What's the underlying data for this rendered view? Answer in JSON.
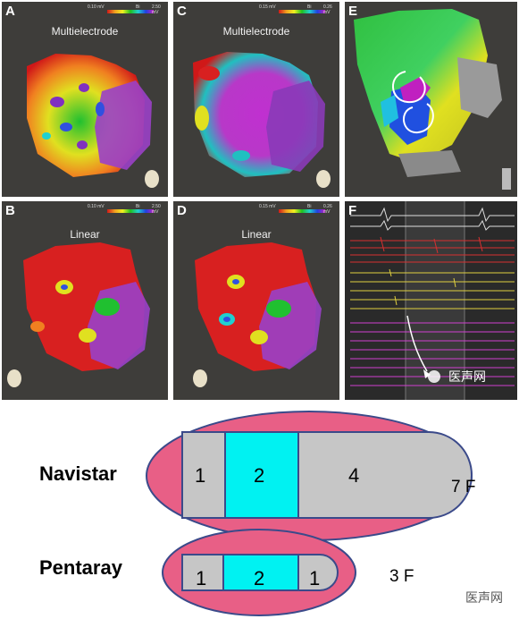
{
  "panels": {
    "A": {
      "letter": "A",
      "title": "Multielectrode",
      "scale_min": "0.10 mV",
      "scale_mid": "Bi",
      "scale_max": "2.50 mV"
    },
    "B": {
      "letter": "B",
      "title": "Linear",
      "scale_min": "0.10 mV",
      "scale_mid": "Bi",
      "scale_max": "2.50 mV"
    },
    "C": {
      "letter": "C",
      "title": "Multielectrode",
      "scale_min": "0.15 mV",
      "scale_mid": "Bi",
      "scale_max": "0.26 mV"
    },
    "D": {
      "letter": "D",
      "title": "Linear",
      "scale_min": "0.15 mV",
      "scale_mid": "Bi",
      "scale_max": "0.26 mV"
    },
    "E": {
      "letter": "E"
    },
    "F": {
      "letter": "F",
      "watermark": "医声网"
    }
  },
  "catheters": [
    {
      "name": "Navistar",
      "size": "7 F",
      "electrodes": [
        "1",
        "2",
        "4"
      ]
    },
    {
      "name": "Pentaray",
      "size": "3 F",
      "electrodes": [
        "1",
        "2",
        "1"
      ]
    }
  ],
  "watermark": "医声网",
  "colors": {
    "sheath_pink": "#e85f86",
    "sheath_border": "#3b4a8a",
    "electrode_gray": "#c6c6c6",
    "electrode_cyan": "#00f2f2",
    "panel_bg": "#3e3d3a"
  }
}
